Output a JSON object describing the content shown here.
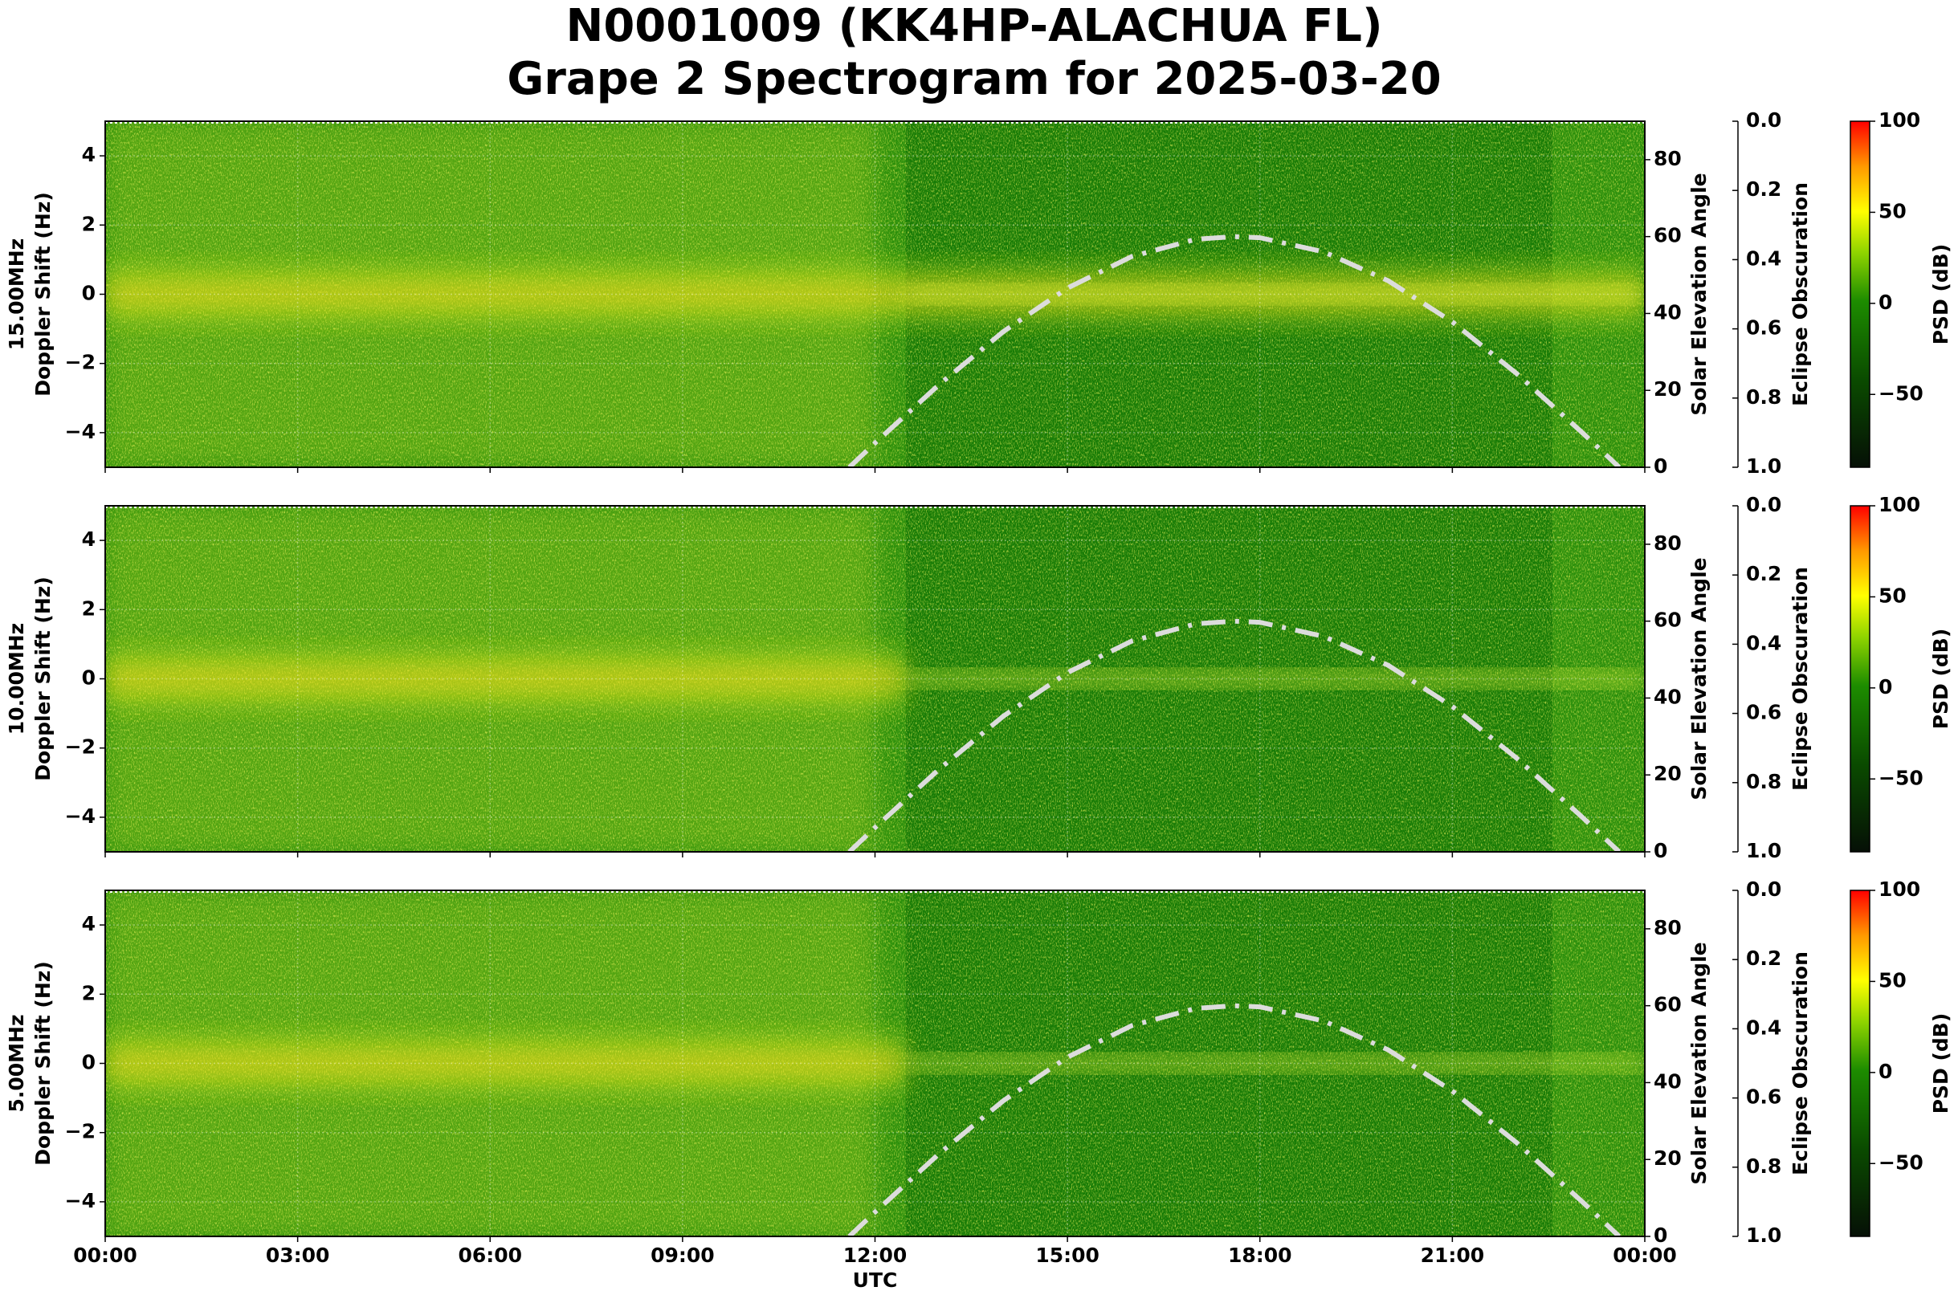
{
  "title": [
    "N0001009 (KK4HP-ALACHUA FL)",
    "Grape 2 Spectrogram for 2025-03-20"
  ],
  "chart_data": [
    {
      "type": "spectrogram",
      "frequency": "15.00MHz",
      "ylabel": "Doppler Shift (Hz)",
      "ylim": [
        -5,
        5
      ],
      "yticks": [
        {
          "value": -4,
          "label": "−4"
        },
        {
          "value": -2,
          "label": "−2"
        },
        0,
        2,
        4
      ],
      "xlim": [
        0,
        24
      ],
      "grid": true,
      "y2label": "Solar Elevation Angle",
      "y2lim": [
        0,
        90
      ],
      "y2ticks": [
        0,
        20,
        40,
        60,
        80
      ],
      "y3label": "Eclipse Obscuration",
      "y3lim": [
        1,
        0
      ],
      "y3ticks": [
        {
          "value": 0,
          "label": "0.0"
        },
        {
          "value": 0.2,
          "label": "0.2"
        },
        {
          "value": 0.4,
          "label": "0.4"
        },
        {
          "value": 0.6,
          "label": "0.6"
        },
        {
          "value": 0.8,
          "label": "0.8"
        },
        {
          "value": 1,
          "label": "1.0"
        }
      ],
      "clabel": "PSD (dB)",
      "clim": [
        -90,
        100
      ],
      "cticks": [
        {
          "value": -50,
          "label": "−50"
        },
        0,
        50,
        100
      ],
      "x": [
        11.6,
        12,
        13,
        14,
        15,
        16,
        17,
        17.6,
        18,
        19,
        20,
        21,
        22,
        23,
        23.6
      ],
      "series": [
        {
          "color": "#dcdcdc",
          "axis": "y2",
          "values": [
            0,
            6.3,
            21.5,
            35.3,
            46.6,
            54.8,
            59.3,
            60,
            59.7,
            56,
            48.5,
            37.8,
            24.4,
            9.4,
            0
          ]
        }
      ]
    },
    {
      "type": "spectrogram",
      "frequency": "10.00MHz",
      "ylabel": "Doppler Shift (Hz)",
      "ylim": [
        -5,
        5
      ],
      "yticks": [
        {
          "value": -4,
          "label": "−4"
        },
        {
          "value": -2,
          "label": "−2"
        },
        0,
        2,
        4
      ],
      "xlim": [
        0,
        24
      ],
      "grid": true,
      "y2label": "Solar Elevation Angle",
      "y2lim": [
        0,
        90
      ],
      "y2ticks": [
        0,
        20,
        40,
        60,
        80
      ],
      "y3label": "Eclipse Obscuration",
      "y3lim": [
        1,
        0
      ],
      "y3ticks": [
        {
          "value": 0,
          "label": "0.0"
        },
        {
          "value": 0.2,
          "label": "0.2"
        },
        {
          "value": 0.4,
          "label": "0.4"
        },
        {
          "value": 0.6,
          "label": "0.6"
        },
        {
          "value": 0.8,
          "label": "0.8"
        },
        {
          "value": 1,
          "label": "1.0"
        }
      ],
      "clabel": "PSD (dB)",
      "clim": [
        -90,
        100
      ],
      "cticks": [
        {
          "value": -50,
          "label": "−50"
        },
        0,
        50,
        100
      ],
      "x": [
        11.6,
        12,
        13,
        14,
        15,
        16,
        17,
        17.6,
        18,
        19,
        20,
        21,
        22,
        23,
        23.6
      ],
      "series": [
        {
          "color": "#dcdcdc",
          "axis": "y2",
          "values": [
            0,
            6.3,
            21.5,
            35.3,
            46.6,
            54.8,
            59.3,
            60,
            59.7,
            56,
            48.5,
            37.8,
            24.4,
            9.4,
            0
          ]
        }
      ]
    },
    {
      "type": "spectrogram",
      "frequency": "5.00MHz",
      "ylabel": "Doppler Shift (Hz)",
      "ylim": [
        -5,
        5
      ],
      "yticks": [
        {
          "value": -4,
          "label": "−4"
        },
        {
          "value": -2,
          "label": "−2"
        },
        0,
        2,
        4
      ],
      "xlim": [
        0,
        24
      ],
      "grid": true,
      "xlabel": "UTC",
      "xticks": [
        {
          "value": 0,
          "label": "00:00"
        },
        {
          "value": 3,
          "label": "03:00"
        },
        {
          "value": 6,
          "label": "06:00"
        },
        {
          "value": 9,
          "label": "09:00"
        },
        {
          "value": 12,
          "label": "12:00"
        },
        {
          "value": 15,
          "label": "15:00"
        },
        {
          "value": 18,
          "label": "18:00"
        },
        {
          "value": 21,
          "label": "21:00"
        },
        {
          "value": 24,
          "label": "00:00"
        }
      ],
      "y2label": "Solar Elevation Angle",
      "y2lim": [
        0,
        90
      ],
      "y2ticks": [
        0,
        20,
        40,
        60,
        80
      ],
      "y3label": "Eclipse Obscuration",
      "y3lim": [
        1,
        0
      ],
      "y3ticks": [
        {
          "value": 0,
          "label": "0.0"
        },
        {
          "value": 0.2,
          "label": "0.2"
        },
        {
          "value": 0.4,
          "label": "0.4"
        },
        {
          "value": 0.6,
          "label": "0.6"
        },
        {
          "value": 0.8,
          "label": "0.8"
        },
        {
          "value": 1,
          "label": "1.0"
        }
      ],
      "clabel": "PSD (dB)",
      "clim": [
        -90,
        100
      ],
      "cticks": [
        {
          "value": -50,
          "label": "−50"
        },
        0,
        50,
        100
      ],
      "x": [
        11.6,
        12,
        13,
        14,
        15,
        16,
        17,
        17.6,
        18,
        19,
        20,
        21,
        22,
        23,
        23.6
      ],
      "series": [
        {
          "color": "#dcdcdc",
          "axis": "y2",
          "values": [
            0,
            6.3,
            21.5,
            35.3,
            46.6,
            54.8,
            59.3,
            60,
            59.7,
            56,
            48.5,
            37.8,
            24.4,
            9.4,
            0
          ]
        }
      ]
    }
  ]
}
